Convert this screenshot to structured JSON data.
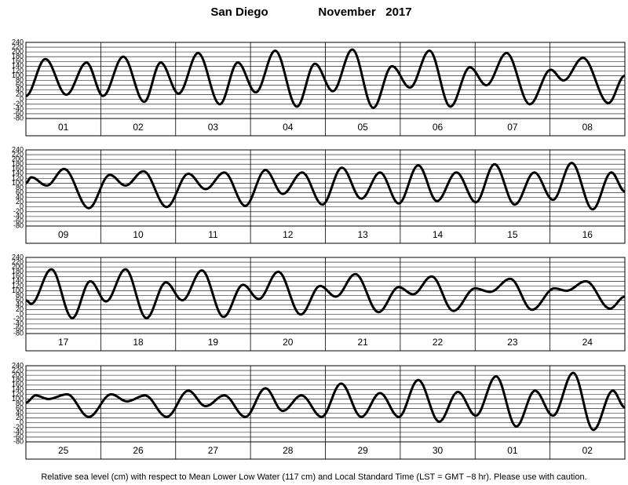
{
  "header": {
    "location": "San Diego",
    "period": "November   2017"
  },
  "note": "Relative sea level (cm) with respect to Mean Lower Low Water (117 cm) and Local Standard Time (LST = GMT −8 hr). Please use with caution.",
  "chart_data": [
    {
      "type": "line",
      "color": "#000000",
      "grid": true,
      "xlim": [
        0,
        8
      ],
      "xticks": [
        {
          "value": 0.5,
          "label": "01"
        },
        {
          "value": 1.5,
          "label": "02"
        },
        {
          "value": 2.5,
          "label": "03"
        },
        {
          "value": 3.5,
          "label": "04"
        },
        {
          "value": 4.5,
          "label": "05"
        },
        {
          "value": 5.5,
          "label": "06"
        },
        {
          "value": 6.5,
          "label": "07"
        },
        {
          "value": 7.5,
          "label": "08"
        }
      ],
      "ylim": [
        -80,
        240
      ],
      "yticks": [
        -80,
        -60,
        -40,
        -20,
        0,
        20,
        40,
        60,
        80,
        100,
        120,
        140,
        160,
        180,
        200,
        220,
        240
      ],
      "x": [
        0,
        0.26,
        0.54,
        0.81,
        1.03,
        1.3,
        1.58,
        1.8,
        2.04,
        2.3,
        2.59,
        2.83,
        3.07,
        3.33,
        3.62,
        3.86,
        4.1,
        4.36,
        4.64,
        4.89,
        5.13,
        5.39,
        5.67,
        5.93,
        6.15,
        6.42,
        6.73,
        7.01,
        7.18,
        7.44,
        7.78,
        8
      ],
      "values": [
        15,
        170,
        20,
        155,
        15,
        180,
        -10,
        155,
        25,
        195,
        -20,
        155,
        30,
        205,
        -30,
        150,
        35,
        210,
        -35,
        140,
        50,
        205,
        -30,
        135,
        60,
        195,
        -20,
        125,
        80,
        175,
        -15,
        100
      ]
    },
    {
      "type": "line",
      "color": "#000000",
      "grid": true,
      "xlim": [
        0,
        8
      ],
      "xticks": [
        {
          "value": 0.5,
          "label": "09"
        },
        {
          "value": 1.5,
          "label": "10"
        },
        {
          "value": 2.5,
          "label": "11"
        },
        {
          "value": 3.5,
          "label": "12"
        },
        {
          "value": 4.5,
          "label": "13"
        },
        {
          "value": 5.5,
          "label": "14"
        },
        {
          "value": 6.5,
          "label": "15"
        },
        {
          "value": 7.5,
          "label": "16"
        }
      ],
      "ylim": [
        -80,
        240
      ],
      "yticks": [
        -80,
        -60,
        -40,
        -20,
        0,
        20,
        40,
        60,
        80,
        100,
        120,
        140,
        160,
        180,
        200,
        220,
        240
      ],
      "x": [
        0,
        0.07,
        0.28,
        0.51,
        0.84,
        1.12,
        1.33,
        1.57,
        1.88,
        2.17,
        2.4,
        2.65,
        2.93,
        3.2,
        3.43,
        3.69,
        3.96,
        4.22,
        4.48,
        4.73,
        4.98,
        5.24,
        5.49,
        5.75,
        6.01,
        6.26,
        6.53,
        6.79,
        7.04,
        7.29,
        7.57,
        7.82,
        8
      ],
      "values": [
        100,
        125,
        90,
        160,
        -5,
        135,
        90,
        150,
        0,
        140,
        75,
        145,
        5,
        155,
        55,
        145,
        10,
        165,
        35,
        145,
        15,
        175,
        25,
        145,
        20,
        180,
        10,
        145,
        30,
        185,
        -10,
        145,
        65
      ]
    },
    {
      "type": "line",
      "color": "#000000",
      "grid": true,
      "xlim": [
        0,
        8
      ],
      "xticks": [
        {
          "value": 0.5,
          "label": "17"
        },
        {
          "value": 1.5,
          "label": "18"
        },
        {
          "value": 2.5,
          "label": "19"
        },
        {
          "value": 3.5,
          "label": "20"
        },
        {
          "value": 4.5,
          "label": "21"
        },
        {
          "value": 5.5,
          "label": "22"
        },
        {
          "value": 6.5,
          "label": "23"
        },
        {
          "value": 7.5,
          "label": "24"
        }
      ],
      "ylim": [
        -80,
        240
      ],
      "yticks": [
        -80,
        -60,
        -40,
        -20,
        0,
        20,
        40,
        60,
        80,
        100,
        120,
        140,
        160,
        180,
        200,
        220,
        240
      ],
      "x": [
        0,
        0.07,
        0.34,
        0.62,
        0.86,
        1.07,
        1.33,
        1.61,
        1.87,
        2.09,
        2.35,
        2.64,
        2.9,
        3.11,
        3.37,
        3.67,
        3.93,
        4.14,
        4.4,
        4.71,
        4.98,
        5.17,
        5.42,
        5.71,
        6,
        6.2,
        6.47,
        6.76,
        7.06,
        7.22,
        7.48,
        7.8,
        8
      ],
      "values": [
        60,
        45,
        190,
        -15,
        140,
        55,
        190,
        -15,
        135,
        60,
        185,
        -10,
        125,
        65,
        180,
        0,
        120,
        75,
        170,
        10,
        115,
        85,
        160,
        15,
        110,
        95,
        150,
        20,
        110,
        100,
        140,
        25,
        75
      ]
    },
    {
      "type": "line",
      "color": "#000000",
      "grid": true,
      "xlim": [
        0,
        8
      ],
      "xticks": [
        {
          "value": 0.5,
          "label": "25"
        },
        {
          "value": 1.5,
          "label": "26"
        },
        {
          "value": 2.5,
          "label": "27"
        },
        {
          "value": 3.5,
          "label": "28"
        },
        {
          "value": 4.5,
          "label": "29"
        },
        {
          "value": 5.5,
          "label": "30"
        },
        {
          "value": 6.5,
          "label": "01"
        },
        {
          "value": 7.5,
          "label": "02"
        }
      ],
      "ylim": [
        -80,
        240
      ],
      "yticks": [
        -80,
        -60,
        -40,
        -20,
        0,
        20,
        40,
        60,
        80,
        100,
        120,
        140,
        160,
        180,
        200,
        220,
        240
      ],
      "x": [
        0,
        0.13,
        0.3,
        0.55,
        0.84,
        1.14,
        1.35,
        1.59,
        1.88,
        2.17,
        2.4,
        2.65,
        2.93,
        3.2,
        3.43,
        3.68,
        3.95,
        4.21,
        4.48,
        4.73,
        4.98,
        5.24,
        5.52,
        5.77,
        6.01,
        6.28,
        6.55,
        6.8,
        7.04,
        7.31,
        7.58,
        7.84,
        8
      ],
      "values": [
        85,
        115,
        100,
        120,
        25,
        120,
        90,
        115,
        25,
        135,
        70,
        115,
        25,
        145,
        50,
        115,
        25,
        165,
        25,
        125,
        25,
        180,
        5,
        130,
        30,
        195,
        -15,
        135,
        30,
        210,
        -30,
        135,
        65
      ]
    }
  ]
}
